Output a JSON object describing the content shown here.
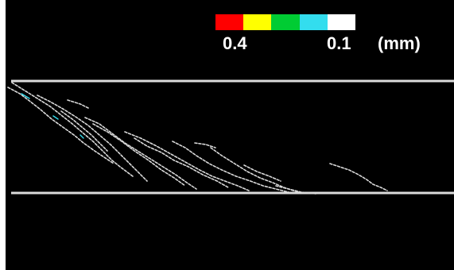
{
  "legend": {
    "colors": [
      "#ff0000",
      "#ffff00",
      "#00cc33",
      "#33ddee",
      "#ffffff"
    ],
    "label_max": "0.4",
    "label_min": "0.1",
    "unit": "(mm)"
  },
  "colors": {
    "background": "#000000",
    "boundary_line": "#dcdcdc",
    "crack": "#d8d8d8",
    "crack_accent": "#33ddee"
  }
}
